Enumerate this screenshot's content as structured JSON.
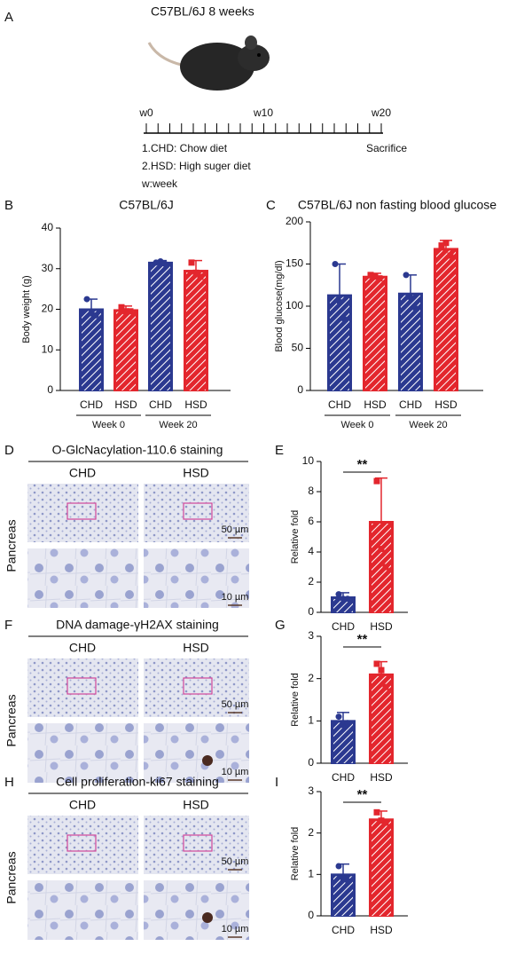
{
  "panel_a": {
    "label": "A",
    "title": "C57BL/6J 8 weeks",
    "timeline_labels": [
      "w0",
      "w10",
      "w20"
    ],
    "legend": [
      "1.CHD: Chow diet",
      "2.HSD: High suger diet",
      "w:week"
    ],
    "end_label": "Sacrifice"
  },
  "chart_data": [
    {
      "type": "bar",
      "panel_label": "B",
      "title": "C57BL/6J",
      "y_label": "Body weight (g)",
      "categories": [
        "CHD",
        "HSD",
        "CHD",
        "HSD"
      ],
      "groups": [
        "Week 0",
        "Week 20"
      ],
      "values": [
        20,
        19.8,
        31.5,
        29.5
      ],
      "errors": [
        2.5,
        1,
        0.5,
        2.5
      ],
      "points": [
        [
          22.5,
          19,
          18.5
        ],
        [
          20.5,
          19.5,
          19.5
        ],
        [
          31.5,
          31.8,
          31.2
        ],
        [
          31.5,
          29,
          28
        ]
      ],
      "colors": [
        "#2b3990",
        "#e3262d",
        "#2b3990",
        "#e3262d"
      ],
      "ylim": [
        0,
        40
      ],
      "yticks": [
        0,
        10,
        20,
        30,
        40
      ]
    },
    {
      "type": "bar",
      "panel_label": "C",
      "title": "C57BL/6J non fasting blood glucose",
      "y_label": "Blood glucose(mg/dl)",
      "categories": [
        "CHD",
        "HSD",
        "CHD",
        "HSD"
      ],
      "groups": [
        "Week 0",
        "Week 20"
      ],
      "values": [
        113,
        135,
        115,
        168
      ],
      "errors": [
        37,
        4,
        22,
        10
      ],
      "points": [
        [
          150,
          105,
          85
        ],
        [
          137,
          135,
          133
        ],
        [
          137,
          110,
          98
        ],
        [
          172,
          175,
          160
        ]
      ],
      "colors": [
        "#2b3990",
        "#e3262d",
        "#2b3990",
        "#e3262d"
      ],
      "ylim": [
        0,
        200
      ],
      "yticks": [
        0,
        50,
        100,
        150,
        200
      ]
    },
    {
      "type": "bar",
      "panel_label": "E",
      "y_label": "Relative fold",
      "categories": [
        "CHD",
        "HSD"
      ],
      "values": [
        1,
        6
      ],
      "errors": [
        0.3,
        2.9
      ],
      "points": [
        [
          1.2,
          0.9,
          0.9
        ],
        [
          8.7,
          4.2,
          3
        ]
      ],
      "colors": [
        "#2b3990",
        "#e3262d"
      ],
      "ylim": [
        0,
        10
      ],
      "yticks": [
        0,
        2,
        4,
        6,
        8,
        10
      ],
      "significance": "**"
    },
    {
      "type": "bar",
      "panel_label": "G",
      "y_label": "Relative fold",
      "categories": [
        "CHD",
        "HSD"
      ],
      "values": [
        1,
        2.1
      ],
      "errors": [
        0.2,
        0.3
      ],
      "points": [
        [
          1.1,
          0.9,
          0.95
        ],
        [
          2.35,
          2.2,
          1.8
        ]
      ],
      "colors": [
        "#2b3990",
        "#e3262d"
      ],
      "ylim": [
        0,
        3
      ],
      "yticks": [
        0,
        1,
        2,
        3
      ],
      "significance": "**"
    },
    {
      "type": "bar",
      "panel_label": "I",
      "y_label": "Relative fold",
      "categories": [
        "CHD",
        "HSD"
      ],
      "values": [
        1,
        2.33
      ],
      "errors": [
        0.25,
        0.2
      ],
      "points": [
        [
          1.2,
          0.9,
          0.85
        ],
        [
          2.5,
          2.3,
          2.25
        ]
      ],
      "colors": [
        "#2b3990",
        "#e3262d"
      ],
      "ylim": [
        0,
        3
      ],
      "yticks": [
        0,
        1,
        2,
        3
      ],
      "significance": "**"
    }
  ],
  "staining": [
    {
      "panel_label": "D",
      "title": "O-GlcNacylation-110.6 staining",
      "columns": [
        "CHD",
        "HSD"
      ],
      "tissue": "Pancreas",
      "scale_labels": [
        "50 µm",
        "10 µm"
      ]
    },
    {
      "panel_label": "F",
      "title": "DNA damage-γH2AX staining",
      "columns": [
        "CHD",
        "HSD"
      ],
      "tissue": "Pancreas",
      "scale_labels": [
        "50 µm",
        "10 µm"
      ]
    },
    {
      "panel_label": "H",
      "title": "Cell proliferation-ki67 staining",
      "columns": [
        "CHD",
        "HSD"
      ],
      "tissue": "Pancreas",
      "scale_labels": [
        "50 µm",
        "10 µm"
      ]
    }
  ]
}
